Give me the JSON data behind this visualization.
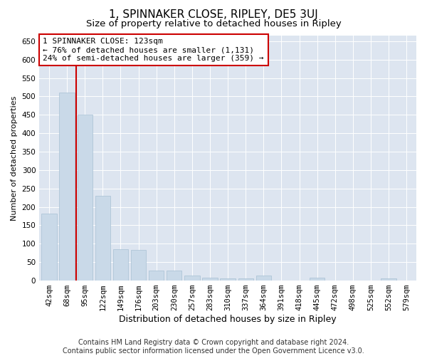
{
  "title": "1, SPINNAKER CLOSE, RIPLEY, DE5 3UJ",
  "subtitle": "Size of property relative to detached houses in Ripley",
  "xlabel": "Distribution of detached houses by size in Ripley",
  "ylabel": "Number of detached properties",
  "footer_line1": "Contains HM Land Registry data © Crown copyright and database right 2024.",
  "footer_line2": "Contains public sector information licensed under the Open Government Licence v3.0.",
  "categories": [
    "42sqm",
    "68sqm",
    "95sqm",
    "122sqm",
    "149sqm",
    "176sqm",
    "203sqm",
    "230sqm",
    "257sqm",
    "283sqm",
    "310sqm",
    "337sqm",
    "364sqm",
    "391sqm",
    "418sqm",
    "445sqm",
    "472sqm",
    "498sqm",
    "525sqm",
    "552sqm",
    "579sqm"
  ],
  "values": [
    181,
    510,
    450,
    230,
    85,
    83,
    27,
    27,
    13,
    8,
    5,
    5,
    13,
    0,
    0,
    8,
    0,
    0,
    0,
    5,
    0
  ],
  "bar_color": "#c9d9e8",
  "bar_edge_color": "#a8c0d4",
  "vline_color": "#cc0000",
  "annotation_line1": "1 SPINNAKER CLOSE: 123sqm",
  "annotation_line2": "← 76% of detached houses are smaller (1,131)",
  "annotation_line3": "24% of semi-detached houses are larger (359) →",
  "annotation_box_color": "#ffffff",
  "annotation_box_edge_color": "#cc0000",
  "ylim": [
    0,
    665
  ],
  "yticks": [
    0,
    50,
    100,
    150,
    200,
    250,
    300,
    350,
    400,
    450,
    500,
    550,
    600,
    650
  ],
  "plot_background": "#dde5f0",
  "grid_color": "#ffffff",
  "title_fontsize": 11,
  "subtitle_fontsize": 9.5,
  "tick_fontsize": 7.5,
  "xlabel_fontsize": 9,
  "ylabel_fontsize": 8,
  "footer_fontsize": 7,
  "annot_fontsize": 8
}
